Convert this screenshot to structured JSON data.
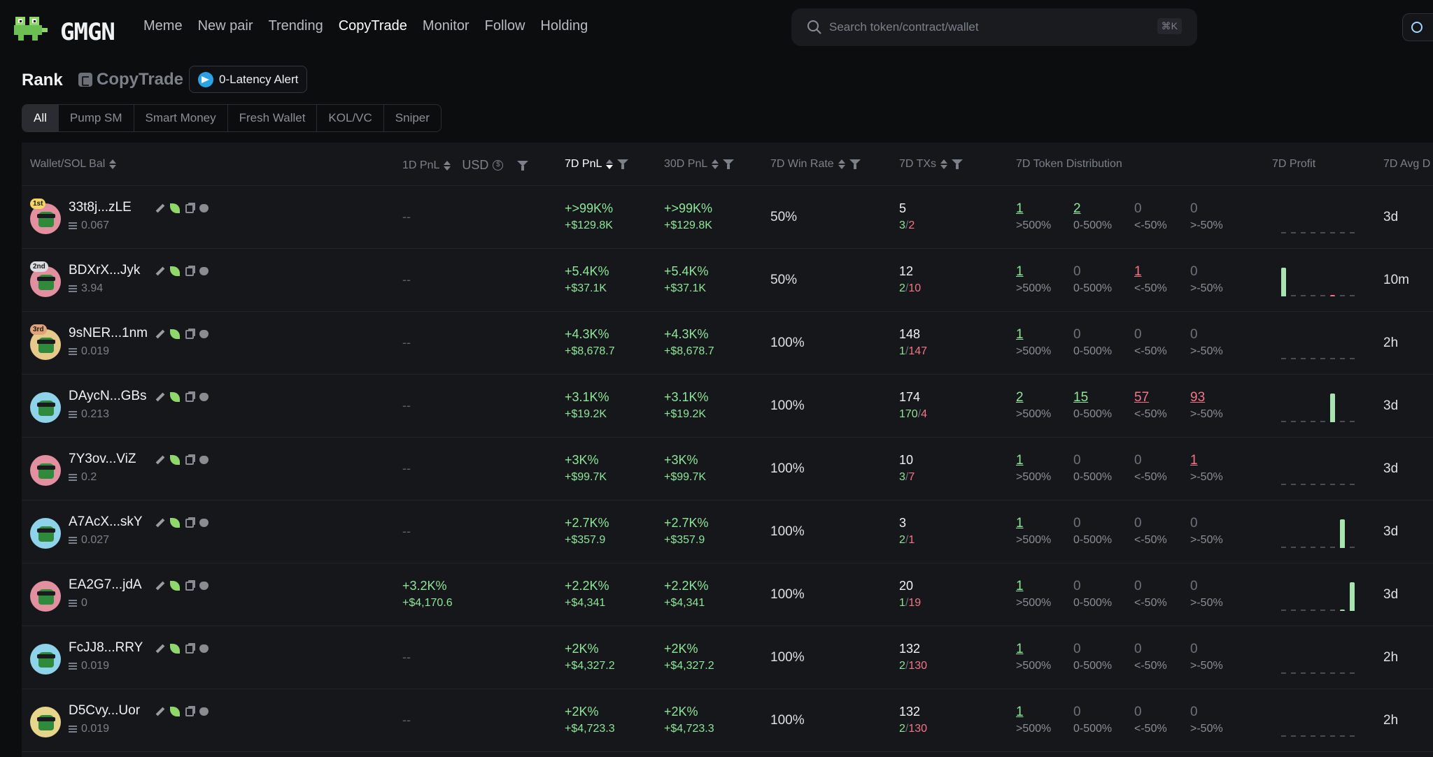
{
  "brand": {
    "name": "GMGN"
  },
  "nav": [
    {
      "label": "Meme",
      "active": false
    },
    {
      "label": "New pair",
      "active": false
    },
    {
      "label": "Trending",
      "active": false
    },
    {
      "label": "CopyTrade",
      "active": true
    },
    {
      "label": "Monitor",
      "active": false
    },
    {
      "label": "Follow",
      "active": false
    },
    {
      "label": "Holding",
      "active": false
    }
  ],
  "search": {
    "placeholder": "Search token/contract/wallet",
    "shortcut": "⌘K"
  },
  "page": {
    "rank": "Rank",
    "section": "CopyTrade",
    "alert": "0-Latency Alert"
  },
  "filters": [
    {
      "label": "All",
      "active": true
    },
    {
      "label": "Pump SM",
      "active": false
    },
    {
      "label": "Smart Money",
      "active": false
    },
    {
      "label": "Fresh Wallet",
      "active": false
    },
    {
      "label": "KOL/VC",
      "active": false
    },
    {
      "label": "Sniper",
      "active": false
    }
  ],
  "columns": {
    "wallet": "Wallet/SOL Bal",
    "pnl_1d": "1D PnL",
    "usd": "USD",
    "pnl_7d": "7D PnL",
    "pnl_30d": "30D PnL",
    "winrate": "7D Win Rate",
    "txs": "7D TXs",
    "dist": "7D Token Distribution",
    "profit": "7D Profit",
    "avg": "7D Avg D"
  },
  "dist_labels": [
    ">500%",
    "0-500%",
    "<-50%",
    ">-50%"
  ],
  "colors": {
    "positive": "#8ee69a",
    "negative": "#f4758a",
    "bg": "#16171a"
  },
  "rows": [
    {
      "rank": "1st",
      "avatar": "#e28fa0",
      "wallet": "33t8j...zLE",
      "bal": "0.067",
      "pnl1d": null,
      "pnl1d_usd": null,
      "pnl7d": "+>99K%",
      "pnl7d_usd": "+$129.8K",
      "pnl30d": "+>99K%",
      "pnl30d_usd": "+$129.8K",
      "winrate": "50%",
      "txs": "5",
      "buys": "3",
      "sells": "2",
      "dist": [
        "1",
        "2",
        "0",
        "0"
      ],
      "profit": [
        0,
        0,
        0,
        0,
        0,
        0,
        0,
        0
      ],
      "avg": "3d"
    },
    {
      "rank": "2nd",
      "avatar": "#e28fa0",
      "wallet": "BDXrX...Jyk",
      "bal": "3.94",
      "pnl1d": null,
      "pnl1d_usd": null,
      "pnl7d": "+5.4K%",
      "pnl7d_usd": "+$37.1K",
      "pnl30d": "+5.4K%",
      "pnl30d_usd": "+$37.1K",
      "winrate": "50%",
      "txs": "12",
      "buys": "2",
      "sells": "10",
      "dist": [
        "1",
        "0",
        "1",
        "0"
      ],
      "profit": [
        0.85,
        0,
        0,
        0,
        0,
        -0.05,
        0,
        0
      ],
      "avg": "10m"
    },
    {
      "rank": "3rd",
      "avatar": "#e8c98c",
      "wallet": "9sNER...1nm",
      "bal": "0.019",
      "pnl1d": null,
      "pnl1d_usd": null,
      "pnl7d": "+4.3K%",
      "pnl7d_usd": "+$8,678.7",
      "pnl30d": "+4.3K%",
      "pnl30d_usd": "+$8,678.7",
      "winrate": "100%",
      "txs": "148",
      "buys": "1",
      "sells": "147",
      "dist": [
        "1",
        "0",
        "0",
        "0"
      ],
      "profit": [
        0,
        0,
        0,
        0,
        0,
        0,
        0,
        0
      ],
      "avg": "2h"
    },
    {
      "rank": "",
      "avatar": "#8fd3ea",
      "wallet": "DAycN...GBs",
      "bal": "0.213",
      "pnl1d": null,
      "pnl1d_usd": null,
      "pnl7d": "+3.1K%",
      "pnl7d_usd": "+$19.2K",
      "pnl30d": "+3.1K%",
      "pnl30d_usd": "+$19.2K",
      "winrate": "100%",
      "txs": "174",
      "buys": "170",
      "sells": "4",
      "dist": [
        "2",
        "15",
        "57",
        "93"
      ],
      "profit": [
        0,
        0,
        0,
        0,
        0,
        0.85,
        0,
        0
      ],
      "avg": "3d"
    },
    {
      "rank": "",
      "avatar": "#e28fa0",
      "wallet": "7Y3ov...ViZ",
      "bal": "0.2",
      "pnl1d": null,
      "pnl1d_usd": null,
      "pnl7d": "+3K%",
      "pnl7d_usd": "+$99.7K",
      "pnl30d": "+3K%",
      "pnl30d_usd": "+$99.7K",
      "winrate": "100%",
      "txs": "10",
      "buys": "3",
      "sells": "7",
      "dist": [
        "1",
        "0",
        "0",
        "1"
      ],
      "profit": [
        0,
        0,
        0,
        0,
        0,
        0,
        0,
        0
      ],
      "avg": "3d"
    },
    {
      "rank": "",
      "avatar": "#8fd3ea",
      "wallet": "A7AcX...skY",
      "bal": "0.027",
      "pnl1d": null,
      "pnl1d_usd": null,
      "pnl7d": "+2.7K%",
      "pnl7d_usd": "+$357.9",
      "pnl30d": "+2.7K%",
      "pnl30d_usd": "+$357.9",
      "winrate": "100%",
      "txs": "3",
      "buys": "2",
      "sells": "1",
      "dist": [
        "1",
        "0",
        "0",
        "0"
      ],
      "profit": [
        0,
        0,
        0,
        0,
        0,
        0,
        0.85,
        0
      ],
      "avg": "3d"
    },
    {
      "rank": "",
      "avatar": "#e28fa0",
      "wallet": "EA2G7...jdA",
      "bal": "0",
      "pnl1d": "+3.2K%",
      "pnl1d_usd": "+$4,170.6",
      "pnl7d": "+2.2K%",
      "pnl7d_usd": "+$4,341",
      "pnl30d": "+2.2K%",
      "pnl30d_usd": "+$4,341",
      "winrate": "100%",
      "txs": "20",
      "buys": "1",
      "sells": "19",
      "dist": [
        "1",
        "0",
        "0",
        "0"
      ],
      "profit": [
        0,
        0,
        0,
        0,
        0,
        0,
        0.05,
        0.85
      ],
      "avg": "3d"
    },
    {
      "rank": "",
      "avatar": "#8fd3ea",
      "wallet": "FcJJ8...RRY",
      "bal": "0.019",
      "pnl1d": null,
      "pnl1d_usd": null,
      "pnl7d": "+2K%",
      "pnl7d_usd": "+$4,327.2",
      "pnl30d": "+2K%",
      "pnl30d_usd": "+$4,327.2",
      "winrate": "100%",
      "txs": "132",
      "buys": "2",
      "sells": "130",
      "dist": [
        "1",
        "0",
        "0",
        "0"
      ],
      "profit": [
        0,
        0,
        0,
        0,
        0,
        0,
        0,
        0
      ],
      "avg": "2h"
    },
    {
      "rank": "",
      "avatar": "#e8d58c",
      "wallet": "D5Cvy...Uor",
      "bal": "0.019",
      "pnl1d": null,
      "pnl1d_usd": null,
      "pnl7d": "+2K%",
      "pnl7d_usd": "+$4,723.3",
      "pnl30d": "+2K%",
      "pnl30d_usd": "+$4,723.3",
      "winrate": "100%",
      "txs": "132",
      "buys": "2",
      "sells": "130",
      "dist": [
        "1",
        "0",
        "0",
        "0"
      ],
      "profit": [
        0,
        0,
        0,
        0,
        0,
        0,
        0,
        0
      ],
      "avg": "2h"
    }
  ],
  "empty_cell": "--"
}
